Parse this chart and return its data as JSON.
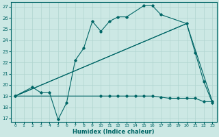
{
  "xlabel": "Humidex (Indice chaleur)",
  "bg_color": "#cce8e4",
  "grid_color": "#b0d4cf",
  "line_color": "#006666",
  "xlim_min": -0.5,
  "xlim_max": 23.5,
  "ylim_min": 16.7,
  "ylim_max": 27.4,
  "xticks": [
    0,
    1,
    2,
    3,
    4,
    5,
    6,
    7,
    8,
    9,
    10,
    11,
    12,
    13,
    14,
    15,
    16,
    17,
    18,
    19,
    20,
    21,
    22,
    23
  ],
  "yticks": [
    17,
    18,
    19,
    20,
    21,
    22,
    23,
    24,
    25,
    26,
    27
  ],
  "curve_main": {
    "x": [
      0,
      2,
      3,
      4,
      5,
      6,
      7,
      8,
      9,
      10,
      11,
      12,
      13,
      15,
      16,
      17,
      20,
      21,
      22,
      23
    ],
    "y": [
      19,
      19.8,
      19.3,
      19.3,
      16.9,
      18.4,
      22.2,
      23.3,
      25.7,
      24.8,
      25.7,
      26.1,
      26.1,
      27.1,
      27.1,
      26.3,
      25.5,
      22.9,
      20.3,
      18.4
    ]
  },
  "curve_flat": {
    "x": [
      0,
      10,
      11,
      12,
      13,
      14,
      15,
      16,
      17,
      18,
      19,
      20,
      21,
      22,
      23
    ],
    "y": [
      19,
      19.0,
      19.0,
      19.0,
      19.0,
      19.0,
      19.0,
      19.0,
      18.9,
      18.8,
      18.8,
      18.8,
      18.8,
      18.5,
      18.5
    ]
  },
  "curve_diag1": {
    "x": [
      0,
      20
    ],
    "y": [
      19,
      25.5
    ]
  },
  "curve_diag2": {
    "x": [
      0,
      20,
      23
    ],
    "y": [
      19,
      25.5,
      18.5
    ]
  }
}
